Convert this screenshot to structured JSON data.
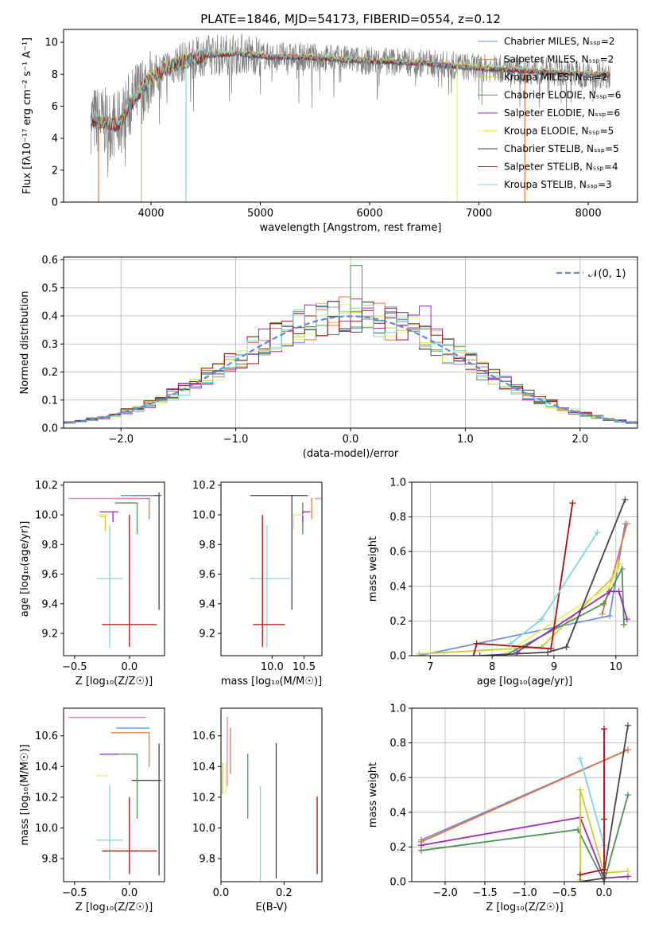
{
  "colors": {
    "Chabrier MILES": "#6f8fde",
    "Salpeter MILES": "#e2773a",
    "Kroupa MILES": "#c9cd2e",
    "Chabrier ELODIE": "#4f9454",
    "Salpeter ELODIE": "#9a2bb4",
    "Kroupa ELODIE": "#e8ee6a",
    "Chabrier STELIB": "#444444",
    "Salpeter STELIB": "#a80f0f",
    "Kroupa STELIB": "#7fd6d8"
  },
  "chart_data": [
    {
      "id": "spectrum",
      "type": "line",
      "title": "PLATE=1846, MJD=54173, FIBERID=0554, z=0.12",
      "xlabel": "wavelength [Angstrom, rest frame]",
      "ylabel": "Flux [fλ10⁻¹⁷ erg cm⁻² s⁻¹ A⁻¹]",
      "xlim": [
        3200,
        8450
      ],
      "ylim": [
        0,
        10.8
      ],
      "xticks": [
        4000,
        5000,
        6000,
        7000,
        8000
      ],
      "yticks": [
        0,
        2,
        4,
        6,
        8,
        10
      ],
      "data_series": {
        "name": "data",
        "color": "#808080"
      },
      "legend": [
        {
          "label": "Chabrier MILES, Nₛₛₚ=2",
          "color": "#6f8fde"
        },
        {
          "label": "Salpeter MILES, Nₛₛₚ=2",
          "color": "#e2773a"
        },
        {
          "label": "Kroupa MILES, Nₛₛₚ=2",
          "color": "#c9cd2e"
        },
        {
          "label": "Chabrier ELODIE, Nₛₛₚ=6",
          "color": "#4f9454"
        },
        {
          "label": "Salpeter ELODIE, Nₛₛₚ=6",
          "color": "#9a2bb4"
        },
        {
          "label": "Kroupa ELODIE, Nₛₛₚ=5",
          "color": "#e8ee6a"
        },
        {
          "label": "Chabrier STELIB, Nₛₛₚ=5",
          "color": "#444444"
        },
        {
          "label": "Salpeter STELIB, Nₛₛₚ=4",
          "color": "#a80f0f"
        },
        {
          "label": "Kroupa STELIB, Nₛₛₚ=3",
          "color": "#7fd6d8"
        }
      ],
      "legend_position": "top-right",
      "continuum": [
        [
          3450,
          5.2
        ],
        [
          3700,
          4.8
        ],
        [
          3800,
          6.0
        ],
        [
          3950,
          7.4
        ],
        [
          4050,
          8.0
        ],
        [
          4200,
          8.6
        ],
        [
          4500,
          9.2
        ],
        [
          4800,
          9.3
        ],
        [
          5100,
          9.1
        ],
        [
          5400,
          9.1
        ],
        [
          5800,
          8.9
        ],
        [
          6200,
          8.8
        ],
        [
          6500,
          8.7
        ],
        [
          7000,
          8.4
        ],
        [
          7500,
          8.2
        ],
        [
          8000,
          8.0
        ],
        [
          8200,
          8.0
        ]
      ],
      "model_dropouts": [
        {
          "x": 3520,
          "color": "#e2773a"
        },
        {
          "x": 3910,
          "color": "#c9cd2e"
        },
        {
          "x": 4320,
          "color": "#7fd6d8"
        },
        {
          "x": 6800,
          "color": "#e8ee6a"
        },
        {
          "x": 7420,
          "color": "#e2773a"
        }
      ]
    },
    {
      "id": "residual-histogram",
      "type": "histogram",
      "xlabel": "(data-model)/error",
      "ylabel": "Normed distribution",
      "xlim": [
        -2.5,
        2.5
      ],
      "ylim": [
        0,
        0.61
      ],
      "xticks": [
        -2,
        -1,
        0,
        1,
        2
      ],
      "yticks": [
        0.0,
        0.1,
        0.2,
        0.3,
        0.4,
        0.5,
        0.6
      ],
      "bin_width": 0.1,
      "reference_curve": {
        "label": "𝒩(0, 1)",
        "mean": 0,
        "sigma": 1,
        "color": "#5b8bd9",
        "style": "dashed"
      },
      "legend_position": "top-right",
      "grid": true,
      "spikes": [
        {
          "x0": 0.0,
          "x1": 0.1,
          "y": 0.58,
          "color": "#4f9454"
        }
      ]
    },
    {
      "id": "age-vs-Z",
      "type": "errorbar",
      "xlabel": "Z [log₁₀(Z/Z☉)]",
      "ylabel": "age  [log₁₀(age/yr)]",
      "xlim": [
        -0.6,
        0.32
      ],
      "ylim": [
        9.05,
        10.22
      ],
      "xticks": [
        -0.5,
        0.0
      ],
      "yticks": [
        9.2,
        9.4,
        9.6,
        9.8,
        10.0,
        10.2
      ],
      "points": [
        {
          "model": "Kroupa STELIB",
          "x": -0.18,
          "xerr": [
            0.12,
            0.12
          ],
          "y": 9.57,
          "yerr": [
            0.47,
            0.36
          ]
        },
        {
          "model": "Salpeter STELIB",
          "x": 0.0,
          "xerr": [
            0.25,
            0.25
          ],
          "y": 9.26,
          "yerr": [
            0.15,
            0.74
          ]
        },
        {
          "model": "Chabrier STELIB",
          "x": 0.27,
          "xerr": [
            0.25,
            0.02
          ],
          "y": 10.13,
          "yerr": [
            0.77,
            0.02
          ]
        },
        {
          "model": "Salpeter MILES",
          "x": 0.18,
          "xerr": [
            0.35,
            0.0
          ],
          "y": 10.11,
          "yerr": [
            0.14,
            0.0
          ]
        },
        {
          "model": "Chabrier MILES",
          "x": 0.22,
          "xerr": [
            0.3,
            0.0
          ],
          "y": 10.13,
          "yerr": [
            0.0,
            0.0
          ]
        },
        {
          "model": "Chabrier ELODIE",
          "x": 0.07,
          "xerr": [
            0.2,
            0.0
          ],
          "y": 10.08,
          "yerr": [
            0.21,
            0.0
          ]
        },
        {
          "model": "Salpeter ELODIE",
          "x": -0.15,
          "xerr": [
            0.12,
            0.05
          ],
          "y": 10.02,
          "yerr": [
            0.07,
            0.0
          ]
        },
        {
          "model": "Kroupa ELODIE",
          "x": -0.2,
          "xerr": [
            0.1,
            0.0
          ],
          "y": 10.0,
          "yerr": [
            0.0,
            0.0
          ]
        },
        {
          "model": "Kroupa MILES",
          "x": -0.22,
          "xerr": [
            0.05,
            0.0
          ],
          "y": 9.99,
          "yerr": [
            0.1,
            0.0
          ]
        },
        {
          "model": "Salpeter ELODIE",
          "x": -0.55,
          "xerr": [
            0.0,
            0.7
          ],
          "y": 10.11,
          "yerr": [
            0.0,
            0.0
          ],
          "color": "#e87ec4"
        }
      ]
    },
    {
      "id": "age-vs-mass",
      "type": "errorbar",
      "xlabel": "mass [log₁₀(M/M☉)]",
      "ylabel": "",
      "xlim": [
        9.2,
        10.78
      ],
      "ylim": [
        9.05,
        10.22
      ],
      "xticks": [
        10.0,
        10.5
      ],
      "yticks": [
        9.2,
        9.4,
        9.6,
        9.8,
        10.0,
        10.2
      ],
      "points": [
        {
          "model": "Kroupa STELIB",
          "x": 9.92,
          "xerr": [
            0.27,
            0.36
          ],
          "y": 9.57,
          "yerr": [
            0.47,
            0.36
          ]
        },
        {
          "model": "Salpeter STELIB",
          "x": 9.85,
          "xerr": [
            0.15,
            0.35
          ],
          "y": 9.26,
          "yerr": [
            0.15,
            0.74
          ]
        },
        {
          "model": "Chabrier STELIB",
          "x": 10.31,
          "xerr": [
            0.65,
            0.25
          ],
          "y": 10.13,
          "yerr": [
            0.77,
            0.0
          ]
        },
        {
          "model": "Salpeter MILES",
          "x": 10.62,
          "xerr": [
            0.0,
            0.0
          ],
          "y": 10.11,
          "yerr": [
            0.14,
            0.0
          ]
        },
        {
          "model": "Chabrier ELODIE",
          "x": 10.48,
          "xerr": [
            0.0,
            0.0
          ],
          "y": 10.08,
          "yerr": [
            0.21,
            0.0
          ]
        },
        {
          "model": "Salpeter ELODIE",
          "x": 10.48,
          "xerr": [
            0.0,
            0.12
          ],
          "y": 10.02,
          "yerr": [
            0.07,
            0.0
          ]
        },
        {
          "model": "Kroupa ELODIE",
          "x": 10.34,
          "xerr": [
            0.0,
            0.15
          ],
          "y": 10.0,
          "yerr": [
            0.1,
            0.0
          ]
        },
        {
          "model": "Salpeter ELODIE",
          "x": 10.72,
          "xerr": [
            0.05,
            0.05
          ],
          "y": 10.11,
          "yerr": [
            0.0,
            0.0
          ],
          "color": "#e87ec4"
        }
      ]
    },
    {
      "id": "weight-vs-age",
      "type": "line",
      "xlabel": "age  [log₁₀(age/yr)]",
      "ylabel": "mass weight",
      "xlim": [
        6.7,
        10.35
      ],
      "ylim": [
        0,
        1.0
      ],
      "xticks": [
        7,
        8,
        9,
        10
      ],
      "yticks": [
        0.0,
        0.2,
        0.4,
        0.6,
        0.8,
        1.0
      ],
      "grid": true,
      "series": [
        {
          "model": "Chabrier MILES",
          "x": [
            6.82,
            9.9,
            10.15
          ],
          "y": [
            0.0,
            0.23,
            0.76
          ]
        },
        {
          "model": "Salpeter MILES",
          "x": [
            9.78,
            10.18
          ],
          "y": [
            0.24,
            0.76
          ]
        },
        {
          "model": "Kroupa MILES",
          "x": [
            6.82,
            8.8,
            9.95,
            10.05
          ],
          "y": [
            0.01,
            0.05,
            0.45,
            0.53
          ]
        },
        {
          "model": "Chabrier ELODIE",
          "x": [
            8.2,
            9.8,
            10.1,
            10.13
          ],
          "y": [
            0.0,
            0.3,
            0.5,
            0.18
          ]
        },
        {
          "model": "Salpeter ELODIE",
          "x": [
            8.4,
            9.9,
            10.05,
            10.18
          ],
          "y": [
            0.02,
            0.37,
            0.37,
            0.21
          ]
        },
        {
          "model": "Kroupa ELODIE",
          "x": [
            8.2,
            9.9,
            10.02
          ],
          "y": [
            0.01,
            0.4,
            0.5
          ]
        },
        {
          "model": "Chabrier STELIB",
          "x": [
            7.8,
            8.9,
            9.2,
            10.15
          ],
          "y": [
            0.0,
            0.02,
            0.05,
            0.9
          ]
        },
        {
          "model": "Salpeter STELIB",
          "x": [
            7.7,
            7.75,
            8.95,
            9.3
          ],
          "y": [
            0.0,
            0.07,
            0.04,
            0.88
          ]
        },
        {
          "model": "Kroupa STELIB",
          "x": [
            8.3,
            8.8,
            9.7
          ],
          "y": [
            0.07,
            0.21,
            0.71
          ]
        }
      ]
    },
    {
      "id": "mass-vs-Z",
      "type": "errorbar",
      "xlabel": "Z [log₁₀(Z/Z☉)]",
      "ylabel": "mass [log₁₀(M/M☉)]",
      "xlim": [
        -0.6,
        0.32
      ],
      "ylim": [
        9.65,
        10.78
      ],
      "xticks": [
        -0.5,
        0.0
      ],
      "yticks": [
        9.8,
        10.0,
        10.2,
        10.4,
        10.6
      ],
      "points": [
        {
          "model": "Kroupa STELIB",
          "x": -0.18,
          "xerr": [
            0.12,
            0.12
          ],
          "y": 9.92,
          "yerr": [
            0.26,
            0.36
          ]
        },
        {
          "model": "Salpeter STELIB",
          "x": 0.0,
          "xerr": [
            0.25,
            0.25
          ],
          "y": 9.85,
          "yerr": [
            0.15,
            0.35
          ]
        },
        {
          "model": "Chabrier STELIB",
          "x": 0.27,
          "xerr": [
            0.25,
            0.02
          ],
          "y": 10.31,
          "yerr": [
            0.62,
            0.24
          ]
        },
        {
          "model": "Salpeter MILES",
          "x": 0.18,
          "xerr": [
            0.35,
            0.0
          ],
          "y": 10.62,
          "yerr": [
            0.22,
            0.0
          ]
        },
        {
          "model": "Chabrier MILES",
          "x": 0.18,
          "xerr": [
            0.3,
            0.0
          ],
          "y": 10.65,
          "yerr": [
            0.0,
            0.0
          ]
        },
        {
          "model": "Chabrier ELODIE",
          "x": 0.07,
          "xerr": [
            0.2,
            0.0
          ],
          "y": 10.48,
          "yerr": [
            0.42,
            0.0
          ]
        },
        {
          "model": "Salpeter ELODIE",
          "x": -0.15,
          "xerr": [
            0.12,
            0.05
          ],
          "y": 10.48,
          "yerr": [
            0.0,
            0.0
          ]
        },
        {
          "model": "Kroupa ELODIE",
          "x": -0.2,
          "xerr": [
            0.1,
            0.0
          ],
          "y": 10.34,
          "yerr": [
            0.0,
            0.0
          ]
        },
        {
          "model": "Salpeter ELODIE",
          "x": -0.55,
          "xerr": [
            0.0,
            0.7
          ],
          "y": 10.72,
          "yerr": [
            0.0,
            0.0
          ],
          "color": "#e87ec4"
        }
      ]
    },
    {
      "id": "mass-vs-EBV",
      "type": "errorbar",
      "xlabel": "E(B-V)",
      "ylabel": "",
      "xlim": [
        0.0,
        0.32
      ],
      "ylim": [
        9.65,
        10.78
      ],
      "xticks": [
        0.0,
        0.2
      ],
      "yticks": [
        9.8,
        10.0,
        10.2,
        10.4,
        10.6
      ],
      "points": [
        {
          "model": "Kroupa MILES",
          "x": 0.005,
          "y": 10.42,
          "yerr": [
            0.2,
            0.0
          ]
        },
        {
          "model": "Chabrier ELODIE",
          "x": 0.085,
          "y": 10.48,
          "yerr": [
            0.42,
            0.0
          ]
        },
        {
          "model": "Kroupa STELIB",
          "x": 0.125,
          "y": 10.27,
          "yerr": [
            0.62,
            0.0
          ]
        },
        {
          "model": "Chabrier STELIB",
          "x": 0.175,
          "y": 10.55,
          "yerr": [
            0.88,
            0.0
          ]
        },
        {
          "model": "Salpeter STELIB",
          "x": 0.305,
          "y": 10.2,
          "yerr": [
            0.5,
            0.0
          ]
        },
        {
          "model": "Salpeter ELODIE",
          "x": 0.02,
          "y": 10.72,
          "yerr": [
            0.45,
            0.0
          ],
          "color": "#e87ec4"
        },
        {
          "model": "Salpeter MILES",
          "x": 0.03,
          "y": 10.65,
          "yerr": [
            0.3,
            0.0
          ]
        },
        {
          "model": "Kroupa ELODIE",
          "x": 0.015,
          "y": 10.42,
          "yerr": [
            0.2,
            0.0
          ]
        }
      ]
    },
    {
      "id": "weight-vs-Z",
      "type": "line",
      "xlabel": "Z [log₁₀(Z/Z☉)]",
      "ylabel": "mass weight",
      "xlim": [
        -2.42,
        0.42
      ],
      "ylim": [
        0,
        1.0
      ],
      "xticks": [
        -2.0,
        -1.5,
        -1.0,
        -0.5,
        0.0
      ],
      "yticks": [
        0.0,
        0.2,
        0.4,
        0.6,
        0.8,
        1.0
      ],
      "grid": true,
      "series": [
        {
          "model": "Chabrier MILES",
          "x": [
            -2.3,
            0.3
          ],
          "y": [
            0.24,
            0.76
          ]
        },
        {
          "model": "Salpeter MILES",
          "x": [
            -2.3,
            0.3
          ],
          "y": [
            0.23,
            0.76
          ]
        },
        {
          "model": "Chabrier ELODIE",
          "x": [
            -2.3,
            -0.33,
            0.0,
            0.3
          ],
          "y": [
            0.18,
            0.3,
            0.0,
            0.5
          ]
        },
        {
          "model": "Salpeter ELODIE",
          "x": [
            -2.3,
            -0.3,
            0.0,
            0.3
          ],
          "y": [
            0.21,
            0.37,
            0.02,
            0.03
          ]
        },
        {
          "model": "Kroupa MILES",
          "x": [
            -0.3,
            -0.3,
            0.0,
            0.3
          ],
          "y": [
            0.01,
            0.53,
            0.05,
            0.06
          ]
        },
        {
          "model": "Kroupa STELIB",
          "x": [
            -0.3,
            0.0,
            0.0
          ],
          "y": [
            0.71,
            0.21,
            0.07
          ]
        },
        {
          "model": "Chabrier STELIB",
          "x": [
            -0.3,
            0.0,
            0.0,
            0.3
          ],
          "y": [
            0.0,
            0.02,
            0.05,
            0.9
          ]
        },
        {
          "model": "Salpeter STELIB",
          "x": [
            -0.3,
            0.0,
            0.0,
            0.0
          ],
          "y": [
            0.04,
            0.07,
            0.88,
            0.36
          ]
        }
      ]
    }
  ]
}
